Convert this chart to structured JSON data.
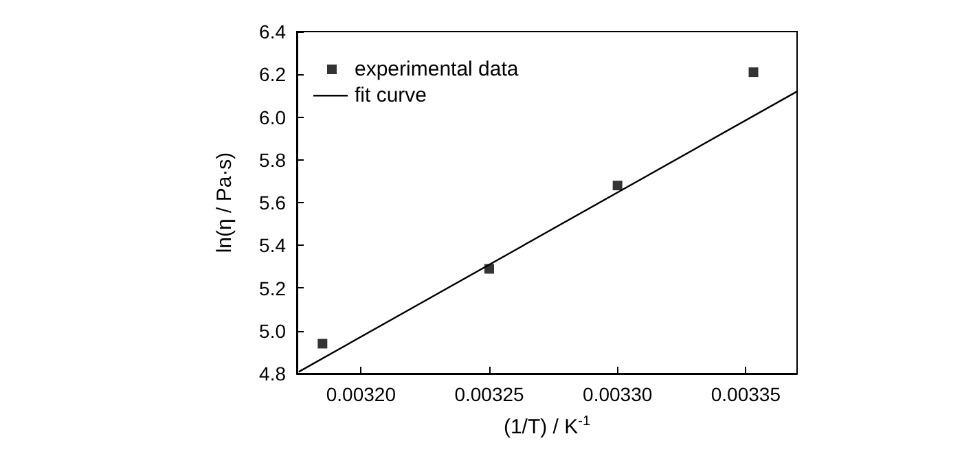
{
  "chart_data": {
    "type": "scatter",
    "xlabel": "(1/T) / K$^{-1}$",
    "ylabel": "ln(η / Pa·s)",
    "xlim": [
      0.003175,
      0.00337
    ],
    "ylim": [
      4.8,
      6.4
    ],
    "xticks": [
      {
        "value": 0.0032,
        "label": "0.00320"
      },
      {
        "value": 0.00325,
        "label": "0.00325"
      },
      {
        "value": 0.0033,
        "label": "0.00330"
      },
      {
        "value": 0.00335,
        "label": "0.00335"
      }
    ],
    "yticks": [
      4.8,
      {
        "value": 5.0,
        "label": "5.0"
      },
      5.2,
      5.4,
      5.6,
      5.8,
      {
        "value": 6.0,
        "label": "6.0"
      },
      6.2,
      6.4
    ],
    "grid": false,
    "legend": "top left",
    "series": [
      {
        "name": "experimental data",
        "marker": "square",
        "color": "#000000",
        "x": [
          0.003185,
          0.00325,
          0.0033,
          0.003353
        ],
        "values": [
          4.94,
          5.29,
          5.68,
          6.21
        ]
      },
      {
        "name": "fit curve",
        "type": "line",
        "color": "#000000",
        "line_style": "solid",
        "x": [
          0.003176,
          0.00337
        ],
        "values": [
          4.81,
          6.12
        ]
      }
    ]
  }
}
